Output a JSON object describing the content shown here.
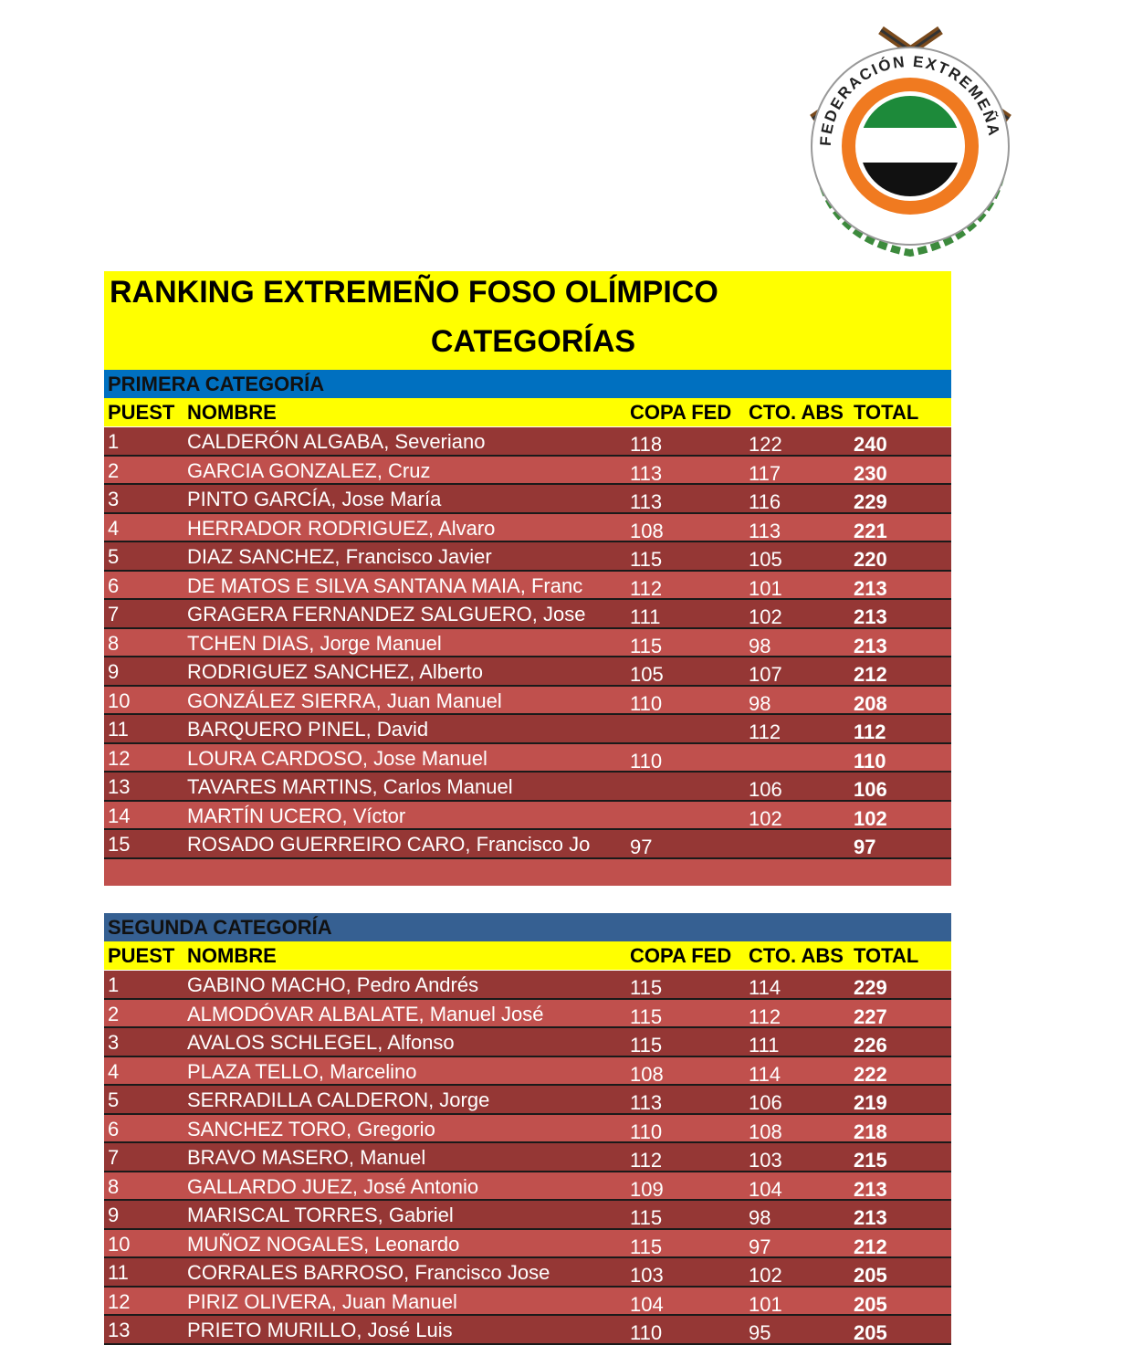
{
  "logo": {
    "text": "FEDERACIÓN EXTREMEÑA DE TIRO OLÍMPICO"
  },
  "title": {
    "line1": "RANKING EXTREMEÑO FOSO OLÍMPICO",
    "line2": "CATEGORÍAS"
  },
  "sections": [
    {
      "name": "PRIMERA CATEGORÍA",
      "columns": [
        "PUEST",
        "NOMBRE",
        "COPA FED",
        "CTO. ABS",
        "TOTAL"
      ],
      "rows": [
        [
          1,
          "CALDERÓN ALGABA, Severiano",
          118,
          122,
          240
        ],
        [
          2,
          "GARCIA GONZALEZ, Cruz",
          113,
          117,
          230
        ],
        [
          3,
          "PINTO GARCÍA, Jose María",
          113,
          116,
          229
        ],
        [
          4,
          "HERRADOR RODRIGUEZ, Alvaro",
          108,
          113,
          221
        ],
        [
          5,
          "DIAZ SANCHEZ, Francisco Javier",
          115,
          105,
          220
        ],
        [
          6,
          "DE MATOS E SILVA SANTANA MAIA, Franc",
          112,
          101,
          213
        ],
        [
          7,
          "GRAGERA FERNANDEZ SALGUERO, Jose",
          111,
          102,
          213
        ],
        [
          8,
          "TCHEN DIAS, Jorge Manuel",
          115,
          98,
          213
        ],
        [
          9,
          "RODRIGUEZ SANCHEZ, Alberto",
          105,
          107,
          212
        ],
        [
          10,
          "GONZÁLEZ SIERRA, Juan Manuel",
          110,
          98,
          208
        ],
        [
          11,
          "BARQUERO PINEL, David",
          null,
          112,
          112
        ],
        [
          12,
          "LOURA CARDOSO, Jose Manuel",
          110,
          null,
          110
        ],
        [
          13,
          "TAVARES MARTINS, Carlos Manuel",
          null,
          106,
          106
        ],
        [
          14,
          "MARTÍN UCERO, Víctor",
          null,
          102,
          102
        ],
        [
          15,
          "ROSADO GUERREIRO CARO, Francisco Jo",
          97,
          null,
          97
        ]
      ]
    },
    {
      "name": "SEGUNDA CATEGORÍA",
      "columns": [
        "PUEST",
        "NOMBRE",
        "COPA FED",
        "CTO. ABS",
        "TOTAL"
      ],
      "rows": [
        [
          1,
          "GABINO MACHO, Pedro Andrés",
          115,
          114,
          229
        ],
        [
          2,
          "ALMODÓVAR ALBALATE, Manuel José",
          115,
          112,
          227
        ],
        [
          3,
          "AVALOS SCHLEGEL, Alfonso",
          115,
          111,
          226
        ],
        [
          4,
          "PLAZA TELLO, Marcelino",
          108,
          114,
          222
        ],
        [
          5,
          "SERRADILLA CALDERON, Jorge",
          113,
          106,
          219
        ],
        [
          6,
          "SANCHEZ TORO, Gregorio",
          110,
          108,
          218
        ],
        [
          7,
          "BRAVO MASERO, Manuel",
          112,
          103,
          215
        ],
        [
          8,
          "GALLARDO JUEZ, José Antonio",
          109,
          104,
          213
        ],
        [
          9,
          "MARISCAL TORRES, Gabriel",
          115,
          98,
          213
        ],
        [
          10,
          "MUÑOZ NOGALES, Leonardo",
          115,
          97,
          212
        ],
        [
          11,
          "CORRALES BARROSO, Francisco Jose",
          103,
          102,
          205
        ],
        [
          12,
          "PIRIZ OLIVERA, Juan Manuel",
          104,
          101,
          205
        ],
        [
          13,
          "PRIETO MURILLO, José Luis",
          110,
          95,
          205
        ]
      ]
    }
  ]
}
